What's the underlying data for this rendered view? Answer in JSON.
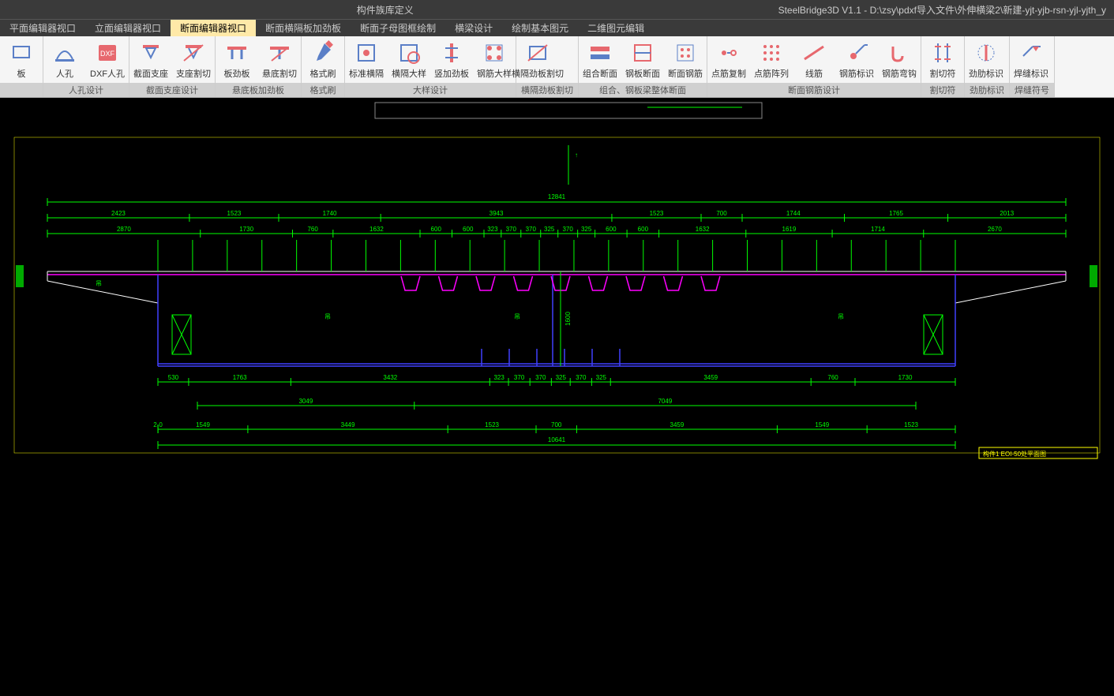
{
  "titlebar": {
    "center": "构件族库定义",
    "right": "SteelBridge3D V1.1 - D:\\zsy\\pdxf导入文件\\外伸横梁2\\新建-yjt-yjb-rsn-yjl-yjth_y"
  },
  "menu": {
    "tabs": [
      {
        "label": "平面编辑器视口",
        "active": false
      },
      {
        "label": "立面编辑器视口",
        "active": false
      },
      {
        "label": "断面编辑器视口",
        "active": true
      },
      {
        "label": "断面横隔板加劲板",
        "active": false
      },
      {
        "label": "断面子母图框绘制",
        "active": false
      },
      {
        "label": "横梁设计",
        "active": false
      },
      {
        "label": "绘制基本图元",
        "active": false
      },
      {
        "label": "二维图元编辑",
        "active": false
      }
    ]
  },
  "ribbon": {
    "groups": [
      {
        "label": "",
        "buttons": [
          {
            "name": "board",
            "label": "板",
            "icon": "board"
          }
        ]
      },
      {
        "label": "人孔设计",
        "buttons": [
          {
            "name": "manhole",
            "label": "人孔",
            "icon": "manhole"
          },
          {
            "name": "dxf-manhole",
            "label": "DXF人孔",
            "icon": "dxf"
          }
        ]
      },
      {
        "label": "截面支座设计",
        "buttons": [
          {
            "name": "section-support",
            "label": "截面支座",
            "icon": "support"
          },
          {
            "name": "support-cut",
            "label": "支座割切",
            "icon": "supportcut"
          }
        ]
      },
      {
        "label": "悬底板加劲板",
        "buttons": [
          {
            "name": "plate-stiff",
            "label": "板劲板",
            "icon": "platestiff"
          },
          {
            "name": "cant-cut",
            "label": "悬底割切",
            "icon": "cantcut"
          }
        ]
      },
      {
        "label": "格式刷",
        "buttons": [
          {
            "name": "format-brush",
            "label": "格式刷",
            "icon": "brush"
          }
        ]
      },
      {
        "label": "大样设计",
        "buttons": [
          {
            "name": "std-diaphragm",
            "label": "标准横隔",
            "icon": "stddia"
          },
          {
            "name": "diaphragm-detail",
            "label": "横隔大样",
            "icon": "diadetail"
          },
          {
            "name": "vert-stiff",
            "label": "竖加劲板",
            "icon": "vstiff"
          },
          {
            "name": "rebar-detail",
            "label": "钢筋大样",
            "icon": "rebar"
          }
        ]
      },
      {
        "label": "横隔劲板割切",
        "buttons": [
          {
            "name": "dia-stiff-cut",
            "label": "横隔劲板割切",
            "icon": "diacut"
          }
        ]
      },
      {
        "label": "组合、钢板梁整体断面",
        "buttons": [
          {
            "name": "combo-section",
            "label": "组合断面",
            "icon": "combo"
          },
          {
            "name": "plate-section",
            "label": "钢板断面",
            "icon": "platesec"
          },
          {
            "name": "section-rebar",
            "label": "断面钢筋",
            "icon": "secrebar"
          }
        ]
      },
      {
        "label": "断面钢筋设计",
        "buttons": [
          {
            "name": "point-copy",
            "label": "点筋复制",
            "icon": "ptcopy"
          },
          {
            "name": "point-array",
            "label": "点筋阵列",
            "icon": "ptarray"
          },
          {
            "name": "line-rebar",
            "label": "线筋",
            "icon": "linerebar"
          },
          {
            "name": "rebar-mark",
            "label": "钢筋标识",
            "icon": "rebarmark"
          },
          {
            "name": "rebar-hook",
            "label": "钢筋弯钩",
            "icon": "rebarhook"
          }
        ]
      },
      {
        "label": "割切符",
        "buttons": [
          {
            "name": "cut-symbol",
            "label": "割切符",
            "icon": "cutsym"
          }
        ]
      },
      {
        "label": "劲肋标识",
        "buttons": [
          {
            "name": "stiff-mark",
            "label": "劲肋标识",
            "icon": "stiffmark"
          }
        ]
      },
      {
        "label": "焊缝符号",
        "buttons": [
          {
            "name": "weld-mark",
            "label": "焊缝标识",
            "icon": "weldmark"
          }
        ]
      }
    ]
  },
  "drawing": {
    "colors": {
      "bg": "#000000",
      "dim": "#00ff00",
      "main": "#00ff00",
      "magenta": "#ff00ff",
      "blue": "#4040ff",
      "white": "#ffffff",
      "yellow": "#ffff00"
    },
    "note_label": "构件1 EOI-50处平面图",
    "overall_dim": "12841",
    "bottom_dim": "10641",
    "row1": [
      "2423",
      "1523",
      "1740",
      "3943",
      "1523",
      "700",
      "1744",
      "1765",
      "2013"
    ],
    "row2": [
      "2870",
      "1730",
      "760",
      "1632",
      "600",
      "600",
      "323",
      "370",
      "370",
      "325",
      "370",
      "325",
      "600",
      "600",
      "1632",
      "1619",
      "1714",
      "2670"
    ],
    "row3": [
      "530",
      "1763",
      "3432",
      "323",
      "370",
      "370",
      "325",
      "370",
      "325",
      "3459",
      "760",
      "1730"
    ],
    "row4": [
      "3049",
      "7049"
    ],
    "row5": [
      "2-0",
      "1549",
      "3449",
      "1523",
      "700",
      "3459",
      "1549",
      "1523"
    ],
    "u_count": 9,
    "bottom_stub_count": 6,
    "marks": [
      "吊",
      "吊",
      "吊",
      "吊"
    ]
  }
}
